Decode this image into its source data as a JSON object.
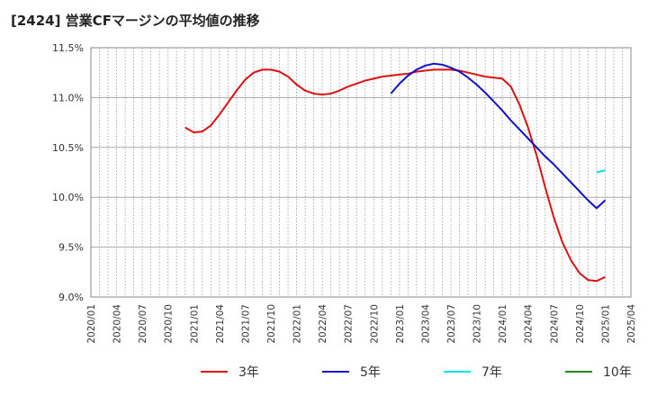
{
  "chart_data": {
    "type": "line",
    "title": "[2424]  営業CFマージンの平均値の推移",
    "x_ticks": [
      "2020/01",
      "2020/04",
      "2020/07",
      "2020/10",
      "2021/01",
      "2021/04",
      "2021/07",
      "2021/10",
      "2022/01",
      "2022/04",
      "2022/07",
      "2022/10",
      "2023/01",
      "2023/04",
      "2023/07",
      "2023/10",
      "2024/01",
      "2024/04",
      "2024/07",
      "2024/10",
      "2025/01",
      "2025/04"
    ],
    "y_ticks": [
      "9.0%",
      "9.5%",
      "10.0%",
      "10.5%",
      "11.0%",
      "11.5%"
    ],
    "ylim": [
      9.0,
      11.5
    ],
    "xlim": [
      "2020/01",
      "2025/04"
    ],
    "grid": true,
    "legend_position": "bottom",
    "series": [
      {
        "name": "3年",
        "color": "#dd1111",
        "points": [
          [
            "2020/12",
            10.7
          ],
          [
            "2021/01",
            10.65
          ],
          [
            "2021/02",
            10.66
          ],
          [
            "2021/03",
            10.72
          ],
          [
            "2021/04",
            10.83
          ],
          [
            "2021/05",
            10.95
          ],
          [
            "2021/06",
            11.07
          ],
          [
            "2021/07",
            11.18
          ],
          [
            "2021/08",
            11.25
          ],
          [
            "2021/09",
            11.28
          ],
          [
            "2021/10",
            11.28
          ],
          [
            "2021/11",
            11.26
          ],
          [
            "2021/12",
            11.21
          ],
          [
            "2022/01",
            11.13
          ],
          [
            "2022/02",
            11.07
          ],
          [
            "2022/03",
            11.04
          ],
          [
            "2022/04",
            11.03
          ],
          [
            "2022/05",
            11.04
          ],
          [
            "2022/06",
            11.07
          ],
          [
            "2022/07",
            11.11
          ],
          [
            "2022/08",
            11.14
          ],
          [
            "2022/09",
            11.17
          ],
          [
            "2022/10",
            11.19
          ],
          [
            "2022/11",
            11.21
          ],
          [
            "2022/12",
            11.22
          ],
          [
            "2023/01",
            11.23
          ],
          [
            "2023/02",
            11.24
          ],
          [
            "2023/03",
            11.26
          ],
          [
            "2023/04",
            11.27
          ],
          [
            "2023/05",
            11.28
          ],
          [
            "2023/06",
            11.28
          ],
          [
            "2023/07",
            11.28
          ],
          [
            "2023/08",
            11.27
          ],
          [
            "2023/09",
            11.25
          ],
          [
            "2023/10",
            11.23
          ],
          [
            "2023/11",
            11.21
          ],
          [
            "2023/12",
            11.2
          ],
          [
            "2024/01",
            11.19
          ],
          [
            "2024/02",
            11.11
          ],
          [
            "2024/03",
            10.93
          ],
          [
            "2024/04",
            10.7
          ],
          [
            "2024/05",
            10.42
          ],
          [
            "2024/06",
            10.1
          ],
          [
            "2024/07",
            9.8
          ],
          [
            "2024/08",
            9.55
          ],
          [
            "2024/09",
            9.37
          ],
          [
            "2024/10",
            9.24
          ],
          [
            "2024/11",
            9.17
          ],
          [
            "2024/12",
            9.16
          ],
          [
            "2025/01",
            9.2
          ]
        ]
      },
      {
        "name": "5年",
        "color": "#1111cc",
        "points": [
          [
            "2022/12",
            11.04
          ],
          [
            "2023/01",
            11.14
          ],
          [
            "2023/02",
            11.22
          ],
          [
            "2023/03",
            11.28
          ],
          [
            "2023/04",
            11.32
          ],
          [
            "2023/05",
            11.34
          ],
          [
            "2023/06",
            11.33
          ],
          [
            "2023/07",
            11.3
          ],
          [
            "2023/08",
            11.26
          ],
          [
            "2023/09",
            11.2
          ],
          [
            "2023/10",
            11.13
          ],
          [
            "2023/11",
            11.05
          ],
          [
            "2023/12",
            10.96
          ],
          [
            "2024/01",
            10.87
          ],
          [
            "2024/02",
            10.77
          ],
          [
            "2024/03",
            10.68
          ],
          [
            "2024/04",
            10.59
          ],
          [
            "2024/05",
            10.5
          ],
          [
            "2024/06",
            10.41
          ],
          [
            "2024/07",
            10.33
          ],
          [
            "2024/08",
            10.24
          ],
          [
            "2024/09",
            10.15
          ],
          [
            "2024/10",
            10.06
          ],
          [
            "2024/11",
            9.97
          ],
          [
            "2024/12",
            9.89
          ],
          [
            "2025/01",
            9.97
          ]
        ]
      },
      {
        "name": "7年",
        "color": "#00e5ee",
        "points": [
          [
            "2024/12",
            10.25
          ],
          [
            "2025/01",
            10.27
          ]
        ]
      },
      {
        "name": "10年",
        "color": "#228822",
        "points": []
      }
    ]
  }
}
